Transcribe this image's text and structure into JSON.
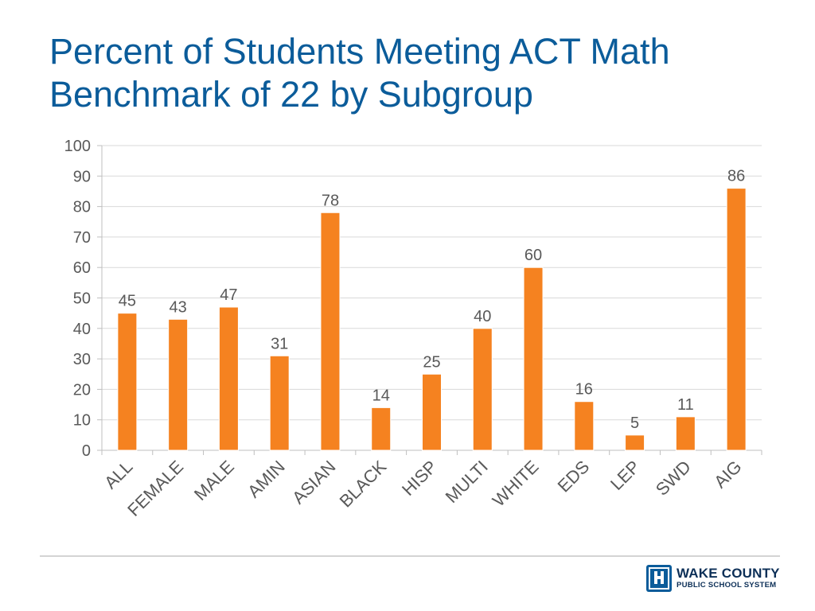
{
  "slide": {
    "title_line1": "Percent of Students Meeting ACT Math",
    "title_line2": "Benchmark of 22 by Subgroup"
  },
  "logo": {
    "icon": "wcpss-logo-icon",
    "line1": "WAKE COUNTY",
    "line2": "PUBLIC SCHOOL SYSTEM",
    "color": "#0b5c9a"
  },
  "chart_data": {
    "type": "bar",
    "categories": [
      "ALL",
      "FEMALE",
      "MALE",
      "AMIN",
      "ASIAN",
      "BLACK",
      "HISP",
      "MULTI",
      "WHITE",
      "EDS",
      "LEP",
      "SWD",
      "AIG"
    ],
    "values": [
      45,
      43,
      47,
      31,
      78,
      14,
      25,
      40,
      60,
      16,
      5,
      11,
      86
    ],
    "data_labels": [
      "45",
      "43",
      "47",
      "31",
      "78",
      "14",
      "25",
      "40",
      "60",
      "16",
      "5",
      "11",
      "86"
    ],
    "title": "Percent of Students Meeting ACT Math Benchmark of 22 by Subgroup",
    "xlabel": "",
    "ylabel": "",
    "ylim": [
      0,
      100
    ],
    "yticks": [
      0,
      10,
      20,
      30,
      40,
      50,
      60,
      70,
      80,
      90,
      100
    ],
    "grid": true,
    "legend": "none",
    "bar_color": "#f58220"
  }
}
